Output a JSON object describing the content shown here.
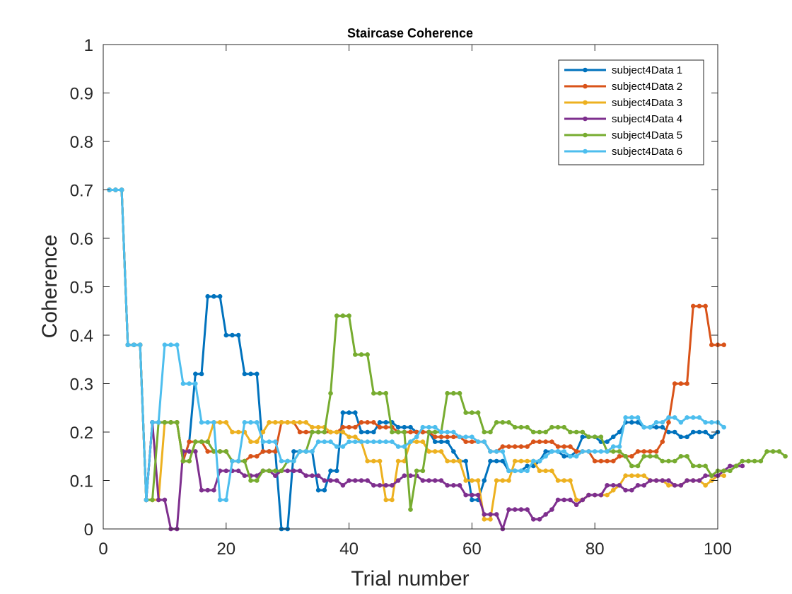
{
  "chart_data": {
    "type": "line",
    "title": "Staircase Coherence",
    "xlabel": "Trial number",
    "ylabel": "Coherence",
    "xlim": [
      0,
      100
    ],
    "ylim": [
      0,
      1
    ],
    "xticks": [
      0,
      20,
      40,
      60,
      80,
      100
    ],
    "yticks": [
      0,
      0.1,
      0.2,
      0.3,
      0.4,
      0.5,
      0.6,
      0.7,
      0.8,
      0.9,
      1
    ],
    "ytick_labels": [
      "0",
      "0.1",
      "0.2",
      "0.3",
      "0.4",
      "0.5",
      "0.6",
      "0.7",
      "0.8",
      "0.9",
      "1"
    ],
    "grid": false,
    "legend_position": "top-right",
    "series": [
      {
        "name": "subject4Data 1",
        "color": "#0072BD",
        "values": [
          0.7,
          0.7,
          0.7,
          0.38,
          0.38,
          0.38,
          0.06,
          0.22,
          0.22,
          0.22,
          0.22,
          0.22,
          0.14,
          0.18,
          0.32,
          0.32,
          0.48,
          0.48,
          0.48,
          0.4,
          0.4,
          0.4,
          0.32,
          0.32,
          0.32,
          0.16,
          0.16,
          0.16,
          0.0,
          0.0,
          0.16,
          0.16,
          0.16,
          0.16,
          0.08,
          0.08,
          0.12,
          0.12,
          0.24,
          0.24,
          0.24,
          0.2,
          0.2,
          0.2,
          0.22,
          0.22,
          0.22,
          0.21,
          0.21,
          0.21,
          0.2,
          0.2,
          0.2,
          0.18,
          0.18,
          0.18,
          0.16,
          0.14,
          0.14,
          0.06,
          0.06,
          0.1,
          0.14,
          0.14,
          0.14,
          0.12,
          0.12,
          0.12,
          0.13,
          0.13,
          0.14,
          0.16,
          0.16,
          0.16,
          0.15,
          0.15,
          0.16,
          0.19,
          0.19,
          0.19,
          0.18,
          0.18,
          0.19,
          0.2,
          0.22,
          0.22,
          0.22,
          0.21,
          0.21,
          0.21,
          0.21,
          0.2,
          0.2,
          0.19,
          0.19,
          0.2,
          0.2,
          0.2,
          0.19,
          0.2
        ]
      },
      {
        "name": "subject4Data 2",
        "color": "#D95319",
        "values": [
          0.7,
          0.7,
          0.7,
          0.38,
          0.38,
          0.38,
          0.06,
          0.22,
          0.22,
          0.22,
          0.22,
          0.22,
          0.14,
          0.18,
          0.18,
          0.18,
          0.16,
          0.16,
          0.16,
          0.16,
          0.14,
          0.14,
          0.14,
          0.15,
          0.15,
          0.16,
          0.16,
          0.16,
          0.22,
          0.22,
          0.22,
          0.2,
          0.2,
          0.2,
          0.2,
          0.2,
          0.2,
          0.2,
          0.21,
          0.21,
          0.21,
          0.22,
          0.22,
          0.22,
          0.21,
          0.21,
          0.21,
          0.2,
          0.2,
          0.2,
          0.2,
          0.2,
          0.2,
          0.19,
          0.19,
          0.19,
          0.19,
          0.19,
          0.18,
          0.18,
          0.18,
          0.18,
          0.16,
          0.16,
          0.17,
          0.17,
          0.17,
          0.17,
          0.17,
          0.18,
          0.18,
          0.18,
          0.18,
          0.17,
          0.17,
          0.17,
          0.16,
          0.16,
          0.16,
          0.14,
          0.14,
          0.14,
          0.14,
          0.15,
          0.15,
          0.15,
          0.16,
          0.16,
          0.16,
          0.16,
          0.18,
          0.22,
          0.3,
          0.3,
          0.3,
          0.46,
          0.46,
          0.46,
          0.38,
          0.38,
          0.38
        ]
      },
      {
        "name": "subject4Data 3",
        "color": "#EDB120",
        "values": [
          0.7,
          0.7,
          0.7,
          0.38,
          0.38,
          0.38,
          0.06,
          0.06,
          0.06,
          0.22,
          0.22,
          0.22,
          0.14,
          0.14,
          0.18,
          0.18,
          0.18,
          0.22,
          0.22,
          0.22,
          0.2,
          0.2,
          0.2,
          0.18,
          0.18,
          0.2,
          0.22,
          0.22,
          0.22,
          0.22,
          0.22,
          0.22,
          0.22,
          0.21,
          0.21,
          0.21,
          0.2,
          0.2,
          0.2,
          0.19,
          0.19,
          0.18,
          0.14,
          0.14,
          0.14,
          0.06,
          0.06,
          0.14,
          0.14,
          0.18,
          0.18,
          0.18,
          0.16,
          0.16,
          0.16,
          0.14,
          0.14,
          0.14,
          0.1,
          0.1,
          0.1,
          0.02,
          0.02,
          0.1,
          0.1,
          0.1,
          0.14,
          0.14,
          0.14,
          0.14,
          0.12,
          0.12,
          0.12,
          0.1,
          0.1,
          0.1,
          0.06,
          0.06,
          0.07,
          0.07,
          0.07,
          0.07,
          0.08,
          0.09,
          0.11,
          0.11,
          0.11,
          0.11,
          0.1,
          0.1,
          0.1,
          0.09,
          0.09,
          0.09,
          0.1,
          0.1,
          0.1,
          0.09,
          0.1,
          0.11,
          0.11
        ]
      },
      {
        "name": "subject4Data 4",
        "color": "#7E2F8E",
        "values": [
          0.7,
          0.7,
          0.7,
          0.38,
          0.38,
          0.38,
          0.06,
          0.22,
          0.06,
          0.06,
          0.0,
          0.0,
          0.16,
          0.16,
          0.16,
          0.08,
          0.08,
          0.08,
          0.12,
          0.12,
          0.12,
          0.12,
          0.11,
          0.11,
          0.11,
          0.12,
          0.12,
          0.11,
          0.12,
          0.12,
          0.12,
          0.12,
          0.11,
          0.11,
          0.11,
          0.1,
          0.1,
          0.1,
          0.09,
          0.1,
          0.1,
          0.1,
          0.1,
          0.09,
          0.09,
          0.09,
          0.09,
          0.1,
          0.11,
          0.11,
          0.11,
          0.1,
          0.1,
          0.1,
          0.1,
          0.09,
          0.09,
          0.09,
          0.07,
          0.07,
          0.07,
          0.03,
          0.03,
          0.03,
          0.0,
          0.04,
          0.04,
          0.04,
          0.04,
          0.02,
          0.02,
          0.03,
          0.04,
          0.06,
          0.06,
          0.06,
          0.05,
          0.06,
          0.07,
          0.07,
          0.07,
          0.09,
          0.09,
          0.09,
          0.08,
          0.08,
          0.09,
          0.09,
          0.1,
          0.1,
          0.1,
          0.1,
          0.09,
          0.09,
          0.1,
          0.1,
          0.1,
          0.11,
          0.11,
          0.11,
          0.12,
          0.13,
          0.13,
          0.13
        ]
      },
      {
        "name": "subject4Data 5",
        "color": "#77AC30",
        "values": [
          0.7,
          0.7,
          0.7,
          0.38,
          0.38,
          0.38,
          0.06,
          0.06,
          0.22,
          0.22,
          0.22,
          0.22,
          0.14,
          0.14,
          0.18,
          0.18,
          0.18,
          0.16,
          0.16,
          0.16,
          0.14,
          0.14,
          0.14,
          0.1,
          0.1,
          0.12,
          0.12,
          0.12,
          0.12,
          0.14,
          0.14,
          0.16,
          0.16,
          0.2,
          0.2,
          0.2,
          0.28,
          0.44,
          0.44,
          0.44,
          0.36,
          0.36,
          0.36,
          0.28,
          0.28,
          0.28,
          0.2,
          0.2,
          0.2,
          0.04,
          0.12,
          0.12,
          0.2,
          0.2,
          0.2,
          0.28,
          0.28,
          0.28,
          0.24,
          0.24,
          0.24,
          0.2,
          0.2,
          0.22,
          0.22,
          0.22,
          0.21,
          0.21,
          0.21,
          0.2,
          0.2,
          0.2,
          0.21,
          0.21,
          0.21,
          0.2,
          0.2,
          0.2,
          0.19,
          0.19,
          0.19,
          0.16,
          0.16,
          0.16,
          0.15,
          0.13,
          0.13,
          0.15,
          0.15,
          0.15,
          0.14,
          0.14,
          0.14,
          0.15,
          0.15,
          0.13,
          0.13,
          0.13,
          0.11,
          0.12,
          0.12,
          0.12,
          0.13,
          0.14,
          0.14,
          0.14,
          0.14,
          0.16,
          0.16,
          0.16,
          0.15
        ]
      },
      {
        "name": "subject4Data 6",
        "color": "#4DBEEE",
        "values": [
          0.7,
          0.7,
          0.7,
          0.38,
          0.38,
          0.38,
          0.06,
          0.22,
          0.22,
          0.38,
          0.38,
          0.38,
          0.3,
          0.3,
          0.3,
          0.22,
          0.22,
          0.22,
          0.06,
          0.06,
          0.14,
          0.14,
          0.22,
          0.22,
          0.22,
          0.18,
          0.18,
          0.18,
          0.14,
          0.14,
          0.14,
          0.16,
          0.16,
          0.16,
          0.18,
          0.18,
          0.18,
          0.17,
          0.17,
          0.18,
          0.18,
          0.18,
          0.18,
          0.18,
          0.18,
          0.18,
          0.18,
          0.17,
          0.17,
          0.18,
          0.19,
          0.21,
          0.21,
          0.21,
          0.2,
          0.2,
          0.2,
          0.19,
          0.19,
          0.19,
          0.18,
          0.18,
          0.16,
          0.16,
          0.16,
          0.12,
          0.12,
          0.12,
          0.12,
          0.14,
          0.14,
          0.15,
          0.16,
          0.16,
          0.16,
          0.15,
          0.15,
          0.16,
          0.16,
          0.16,
          0.16,
          0.16,
          0.17,
          0.17,
          0.23,
          0.23,
          0.23,
          0.21,
          0.21,
          0.22,
          0.22,
          0.23,
          0.23,
          0.22,
          0.23,
          0.23,
          0.23,
          0.22,
          0.22,
          0.22,
          0.21
        ]
      }
    ]
  }
}
